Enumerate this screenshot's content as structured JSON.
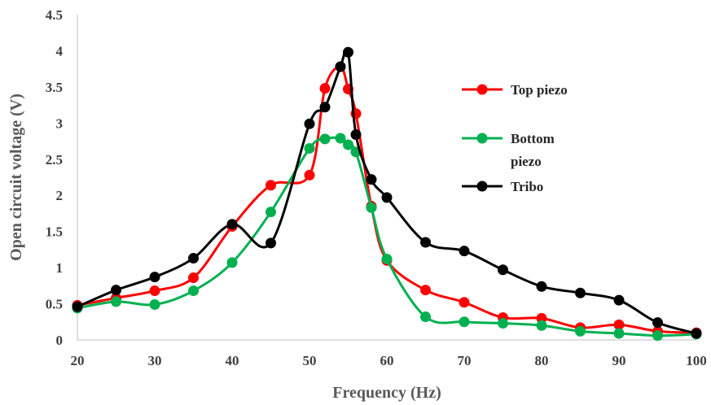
{
  "chart_data": {
    "type": "line",
    "xlabel": "Frequency (Hz)",
    "ylabel": "Open circuit voltage (V)",
    "xlim": [
      20,
      100
    ],
    "ylim": [
      0,
      4.5
    ],
    "x_ticks": [
      20,
      30,
      40,
      50,
      60,
      70,
      80,
      90,
      100
    ],
    "y_ticks": [
      0,
      0.5,
      1,
      1.5,
      2,
      2.5,
      3,
      3.5,
      4,
      4.5
    ],
    "y_tick_labels": [
      "0",
      "0.5",
      "1",
      "1.5",
      "2",
      "2.5",
      "3",
      "3.5",
      "4",
      "4.5"
    ],
    "grid": false,
    "legend_position": "right",
    "smooth": true,
    "series": [
      {
        "name": "Top piezo",
        "color": "#ff0000",
        "x": [
          20,
          25,
          30,
          35,
          40,
          45,
          50,
          52,
          54,
          55,
          56,
          58,
          60,
          65,
          70,
          75,
          80,
          85,
          90,
          95,
          100
        ],
        "y": [
          0.48,
          0.58,
          0.68,
          0.86,
          1.57,
          2.14,
          2.28,
          3.48,
          3.78,
          3.47,
          3.13,
          1.85,
          1.1,
          0.69,
          0.52,
          0.31,
          0.3,
          0.17,
          0.21,
          0.12,
          0.1
        ]
      },
      {
        "name": "Bottom piezo",
        "legend_lines": [
          "Bottom",
          "piezo"
        ],
        "color": "#00b050",
        "x": [
          20,
          25,
          30,
          35,
          40,
          45,
          50,
          52,
          54,
          55,
          56,
          58,
          60,
          65,
          70,
          75,
          80,
          85,
          90,
          95,
          100
        ],
        "y": [
          0.44,
          0.53,
          0.49,
          0.68,
          1.07,
          1.77,
          2.65,
          2.78,
          2.79,
          2.7,
          2.6,
          1.83,
          1.12,
          0.32,
          0.25,
          0.23,
          0.2,
          0.12,
          0.09,
          0.06,
          0.08
        ]
      },
      {
        "name": "Tribo",
        "color": "#000000",
        "x": [
          20,
          25,
          30,
          35,
          40,
          45,
          50,
          52,
          54,
          55,
          56,
          58,
          60,
          65,
          70,
          75,
          80,
          85,
          90,
          95,
          100
        ],
        "y": [
          0.46,
          0.69,
          0.87,
          1.13,
          1.6,
          1.34,
          2.99,
          3.22,
          3.78,
          3.98,
          2.84,
          2.22,
          1.97,
          1.35,
          1.23,
          0.97,
          0.74,
          0.65,
          0.55,
          0.24,
          0.09
        ]
      }
    ]
  }
}
